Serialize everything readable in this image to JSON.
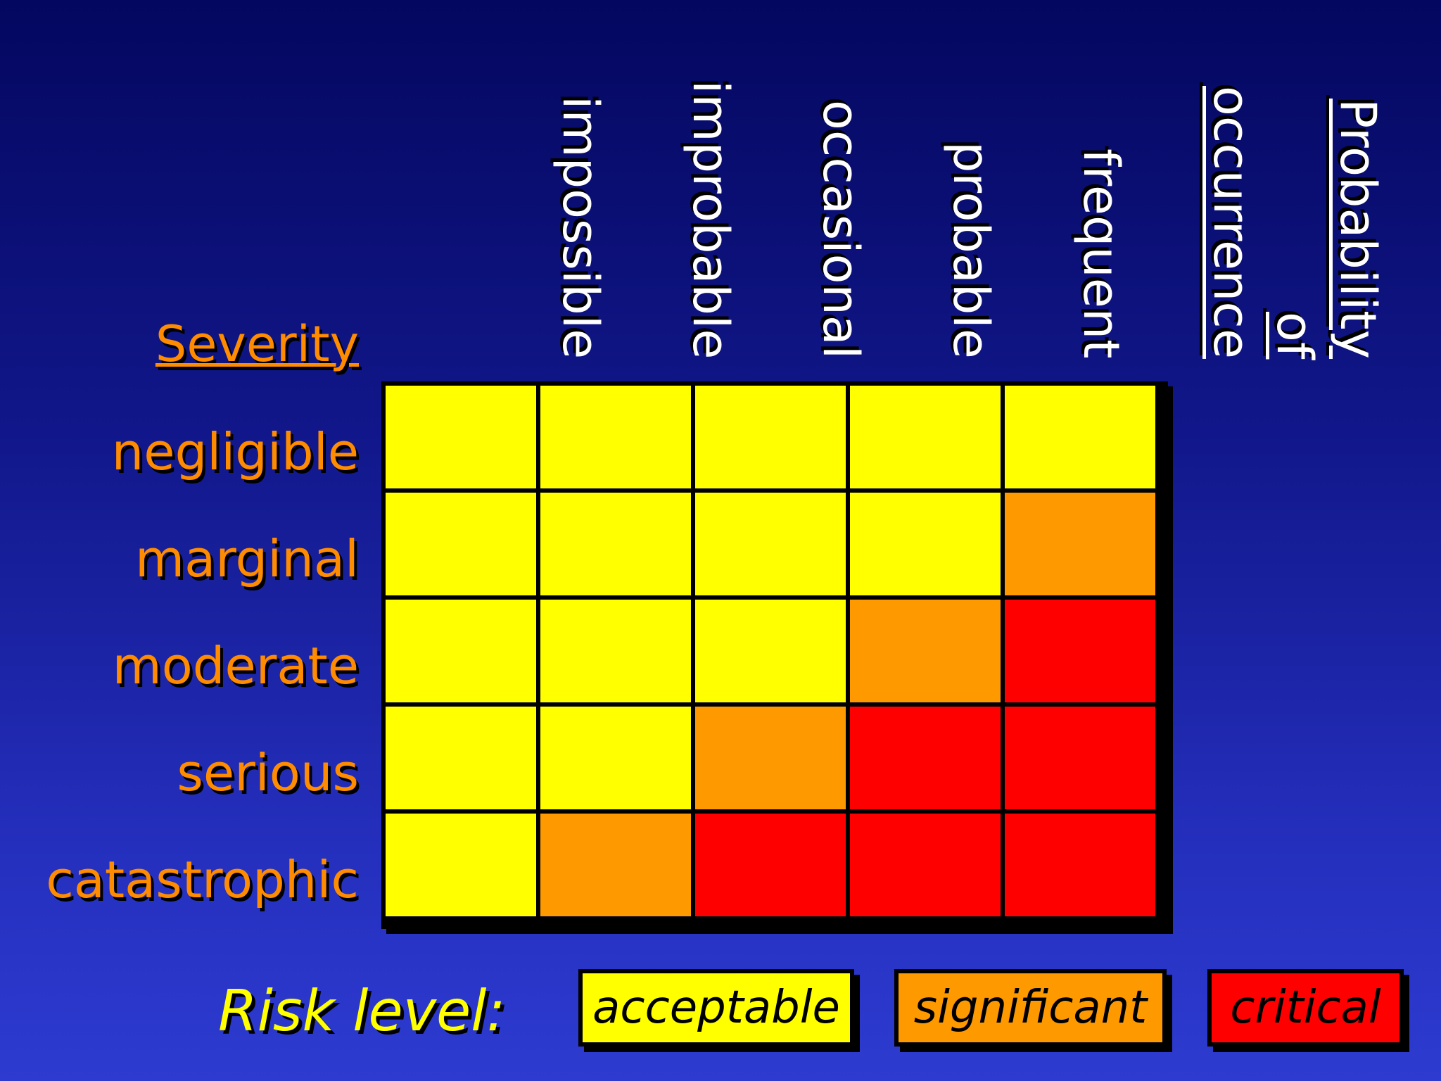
{
  "probability": {
    "title_line1": "Probability",
    "title_line2": "of",
    "title_line3": "occurrence",
    "levels": [
      "impossible",
      "improbable",
      "occasional",
      "probable",
      "frequent"
    ]
  },
  "severity": {
    "title": "Severity",
    "levels": [
      "negligible",
      "marginal",
      "moderate",
      "serious",
      "catastrophic"
    ]
  },
  "matrix": [
    [
      "acceptable",
      "acceptable",
      "acceptable",
      "acceptable",
      "acceptable"
    ],
    [
      "acceptable",
      "acceptable",
      "acceptable",
      "acceptable",
      "significant"
    ],
    [
      "acceptable",
      "acceptable",
      "acceptable",
      "significant",
      "critical"
    ],
    [
      "acceptable",
      "acceptable",
      "significant",
      "critical",
      "critical"
    ],
    [
      "acceptable",
      "significant",
      "critical",
      "critical",
      "critical"
    ]
  ],
  "legend": {
    "title": "Risk level:",
    "items": [
      {
        "key": "acceptable",
        "label": "acceptable",
        "color": "#ffff00"
      },
      {
        "key": "significant",
        "label": "significant",
        "color": "#ff9900"
      },
      {
        "key": "critical",
        "label": "critical",
        "color": "#ff0000"
      }
    ]
  },
  "colors": {
    "acceptable": "#ffff00",
    "significant": "#ff9900",
    "critical": "#ff0000",
    "label_text": "#ff8c00",
    "header_text": "#ffffff"
  }
}
